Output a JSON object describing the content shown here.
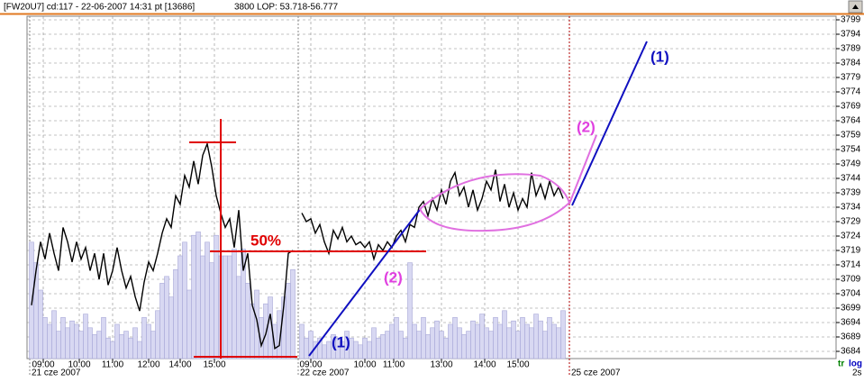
{
  "chart_data": {
    "type": "line",
    "title": "[FW20U7] cd:117 - 22-06-2007  14:31 pt [13686]",
    "subtitle": "3800   LOP: 53.718-56.777",
    "x": [
      0,
      1,
      2,
      3,
      4,
      5,
      6,
      7,
      8,
      9,
      10,
      11,
      12,
      13,
      14,
      15,
      16,
      17,
      18,
      19,
      20,
      21,
      22,
      23,
      24,
      25,
      26,
      27,
      28,
      29,
      30,
      31,
      32,
      33,
      34,
      35,
      36,
      37,
      38,
      39,
      40,
      41,
      42,
      43,
      44,
      45,
      46,
      47,
      48,
      49,
      50,
      51,
      52,
      53,
      54,
      55,
      56,
      57,
      58,
      59,
      60,
      61,
      62,
      63,
      64,
      65,
      66,
      67,
      68,
      69,
      70,
      71,
      72,
      73,
      74,
      75,
      76,
      77,
      78,
      79,
      80,
      81,
      82,
      83,
      84,
      85,
      86,
      87,
      88,
      89,
      90,
      91,
      92,
      93,
      94,
      95,
      96,
      97,
      98,
      99,
      100,
      101,
      102,
      103,
      104,
      105,
      106,
      107,
      108,
      109,
      110,
      111,
      112,
      113,
      114,
      115,
      116,
      117,
      118
    ],
    "series": [
      {
        "color": "#000000",
        "values": [
          3700,
          3712,
          3722,
          3716,
          3725,
          3718,
          3712,
          3727,
          3722,
          3715,
          3722,
          3716,
          3720,
          3712,
          3718,
          3709,
          3718,
          3707,
          3712,
          3720,
          3712,
          3706,
          3710,
          3703,
          3698,
          3708,
          3715,
          3712,
          3718,
          3725,
          3730,
          3727,
          3738,
          3735,
          3745,
          3741,
          3750,
          3742,
          3752,
          3756,
          3748,
          3738,
          3732,
          3727,
          3730,
          3720,
          3733,
          3712,
          3718,
          3700,
          3695,
          3686,
          3690,
          3697,
          3685,
          3686,
          3700,
          3718,
          3719,
          null,
          3732,
          3729,
          3730,
          3725,
          3728,
          3722,
          3718,
          3726,
          3723,
          3727,
          3722,
          3724,
          3721,
          3722,
          3720,
          3722,
          3716,
          3721,
          3719,
          3722,
          3720,
          3724,
          3726,
          3722,
          3728,
          3727,
          3734,
          3736,
          3731,
          3737,
          3733,
          3740,
          3735,
          3743,
          3746,
          3738,
          3741,
          3734,
          3740,
          3733,
          3737,
          3743,
          3740,
          3747,
          3736,
          3742,
          3734,
          3739,
          3733,
          3737,
          3734,
          3746,
          3738,
          3742,
          3737,
          3743,
          3738,
          3741,
          3737
        ]
      },
      {
        "color": "#d8d8f2",
        "axis": "y2",
        "values": [
          34,
          28,
          20,
          12,
          10,
          14,
          8,
          12,
          9,
          11,
          10,
          8,
          13,
          9,
          7,
          8,
          12,
          6,
          5,
          10,
          7,
          8,
          6,
          9,
          5,
          12,
          10,
          8,
          14,
          22,
          24,
          18,
          26,
          30,
          34,
          20,
          36,
          37,
          30,
          34,
          28,
          36,
          30,
          30,
          30,
          32,
          24,
          32,
          22,
          16,
          20,
          12,
          16,
          18,
          10,
          14,
          18,
          22,
          26,
          null,
          10,
          6,
          8,
          5,
          6,
          4,
          5,
          7,
          6,
          5,
          8,
          6,
          5,
          4,
          6,
          5,
          9,
          6,
          7,
          8,
          10,
          12,
          8,
          6,
          28,
          10,
          8,
          12,
          7,
          9,
          11,
          8,
          6,
          10,
          12,
          9,
          7,
          8,
          11,
          10,
          13,
          9,
          8,
          12,
          10,
          14,
          9,
          11,
          8,
          12,
          10,
          9,
          13,
          11,
          8,
          12,
          10,
          9,
          14
        ]
      }
    ],
    "xlim": [
      -1,
      178.6
    ],
    "xticks": [
      {
        "value": 2.6,
        "label": "09:00"
      },
      {
        "value": 10.6,
        "label": "10:00"
      },
      {
        "value": 18,
        "label": "11:00"
      },
      {
        "value": 26,
        "label": "12:00"
      },
      {
        "value": 33,
        "label": "14:00"
      },
      {
        "value": 40.6,
        "label": "15:00"
      },
      {
        "value": 62,
        "label": "09:00"
      },
      {
        "value": 74,
        "label": "10:00"
      },
      {
        "value": 80.4,
        "label": "11:00"
      },
      {
        "value": 91,
        "label": "13:00"
      },
      {
        "value": 100.6,
        "label": "14:00"
      },
      {
        "value": 108,
        "label": "15:00"
      }
    ],
    "date_ticks": [
      {
        "value": -0.4,
        "label": "21 cze 2007"
      },
      {
        "value": 59.2,
        "label": "22 cze 2007"
      },
      {
        "value": 119.4,
        "label": "25 cze 2007"
      }
    ],
    "ylim": [
      3681.5,
      3800.25
    ],
    "yticks": [
      3684,
      3689,
      3694,
      3699,
      3704,
      3709,
      3714,
      3719,
      3724,
      3729,
      3734,
      3739,
      3744,
      3749,
      3754,
      3759,
      3764,
      3769,
      3774,
      3779,
      3784,
      3789,
      3794,
      3799
    ],
    "y2lim": [
      0,
      100
    ],
    "grid": true,
    "annotations": [
      "50%",
      "(1)",
      "(2)",
      "(1)",
      "(2)"
    ],
    "footer": [
      "tr",
      "log",
      "2s"
    ]
  }
}
